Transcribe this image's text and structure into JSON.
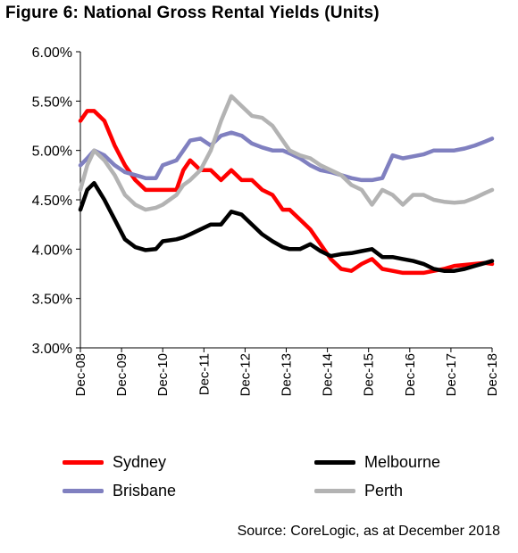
{
  "title": "Figure 6: National Gross Rental Yields (Units)",
  "source": "Source:  CoreLogic, as at December 2018",
  "chart_data": {
    "type": "line",
    "title": "Figure 6: National Gross Rental Yields (Units)",
    "y_ticks": [
      "6.00%",
      "5.50%",
      "5.00%",
      "4.50%",
      "4.00%",
      "3.50%",
      "3.00%"
    ],
    "ylim": [
      3.0,
      6.0
    ],
    "x_ticks": [
      "Dec-08",
      "Dec-09",
      "Dec-10",
      "Dec-11",
      "Dec-12",
      "Dec-13",
      "Dec-14",
      "Dec-15",
      "Dec-16",
      "Dec-17",
      "Dec-18"
    ],
    "xlim": [
      2008.917,
      2018.917
    ],
    "grid": false,
    "legend_position": "bottom",
    "series": [
      {
        "name": "Sydney",
        "color": "#ff0000",
        "x": [
          2008.917,
          2009.083,
          2009.25,
          2009.5,
          2009.75,
          2010.0,
          2010.25,
          2010.5,
          2010.75,
          2010.917,
          2011.25,
          2011.417,
          2011.583,
          2011.833,
          2012.083,
          2012.333,
          2012.583,
          2012.833,
          2013.083,
          2013.333,
          2013.583,
          2013.833,
          2014.0,
          2014.25,
          2014.5,
          2014.75,
          2015.0,
          2015.25,
          2015.5,
          2015.75,
          2016.0,
          2016.25,
          2016.5,
          2016.75,
          2017.0,
          2017.25,
          2017.5,
          2017.75,
          2018.0,
          2018.25,
          2018.5,
          2018.75,
          2018.917
        ],
        "values": [
          5.3,
          5.4,
          5.4,
          5.3,
          5.05,
          4.85,
          4.7,
          4.6,
          4.6,
          4.6,
          4.6,
          4.8,
          4.9,
          4.8,
          4.8,
          4.7,
          4.8,
          4.7,
          4.7,
          4.6,
          4.55,
          4.4,
          4.4,
          4.3,
          4.2,
          4.05,
          3.9,
          3.8,
          3.78,
          3.85,
          3.9,
          3.8,
          3.78,
          3.76,
          3.76,
          3.76,
          3.78,
          3.8,
          3.83,
          3.84,
          3.85,
          3.86,
          3.85
        ]
      },
      {
        "name": "Melbourne",
        "color": "#000000",
        "x": [
          2008.917,
          2009.083,
          2009.25,
          2009.5,
          2009.75,
          2010.0,
          2010.25,
          2010.5,
          2010.75,
          2010.917,
          2011.25,
          2011.417,
          2011.583,
          2011.833,
          2012.083,
          2012.333,
          2012.583,
          2012.833,
          2013.083,
          2013.333,
          2013.583,
          2013.833,
          2014.0,
          2014.25,
          2014.5,
          2014.75,
          2015.0,
          2015.25,
          2015.5,
          2015.75,
          2016.0,
          2016.25,
          2016.5,
          2016.75,
          2017.0,
          2017.25,
          2017.5,
          2017.75,
          2018.0,
          2018.25,
          2018.5,
          2018.75,
          2018.917
        ],
        "values": [
          4.4,
          4.6,
          4.67,
          4.5,
          4.3,
          4.1,
          4.02,
          3.99,
          4.0,
          4.08,
          4.1,
          4.12,
          4.15,
          4.2,
          4.25,
          4.25,
          4.38,
          4.35,
          4.25,
          4.15,
          4.08,
          4.02,
          4.0,
          4.0,
          4.05,
          3.98,
          3.93,
          3.95,
          3.96,
          3.98,
          4.0,
          3.92,
          3.92,
          3.9,
          3.88,
          3.85,
          3.8,
          3.78,
          3.78,
          3.8,
          3.83,
          3.86,
          3.88
        ]
      },
      {
        "name": "Brisbane",
        "color": "#8080c0",
        "x": [
          2008.917,
          2009.083,
          2009.25,
          2009.5,
          2009.75,
          2010.0,
          2010.25,
          2010.5,
          2010.75,
          2010.917,
          2011.25,
          2011.417,
          2011.583,
          2011.833,
          2012.083,
          2012.333,
          2012.583,
          2012.833,
          2013.083,
          2013.333,
          2013.583,
          2013.833,
          2014.0,
          2014.25,
          2014.5,
          2014.75,
          2015.0,
          2015.25,
          2015.5,
          2015.75,
          2016.0,
          2016.25,
          2016.5,
          2016.75,
          2017.0,
          2017.25,
          2017.5,
          2017.75,
          2018.0,
          2018.25,
          2018.5,
          2018.75,
          2018.917
        ],
        "values": [
          4.85,
          4.92,
          5.0,
          4.95,
          4.85,
          4.78,
          4.75,
          4.72,
          4.72,
          4.85,
          4.9,
          5.0,
          5.1,
          5.12,
          5.05,
          5.15,
          5.18,
          5.15,
          5.07,
          5.03,
          5.0,
          5.0,
          4.97,
          4.92,
          4.85,
          4.8,
          4.78,
          4.75,
          4.72,
          4.7,
          4.7,
          4.72,
          4.95,
          4.92,
          4.94,
          4.96,
          5.0,
          5.0,
          5.0,
          5.02,
          5.05,
          5.09,
          5.12
        ]
      },
      {
        "name": "Perth",
        "color": "#b3b3b3",
        "x": [
          2008.917,
          2009.083,
          2009.25,
          2009.5,
          2009.75,
          2010.0,
          2010.25,
          2010.5,
          2010.75,
          2010.917,
          2011.25,
          2011.417,
          2011.583,
          2011.833,
          2012.083,
          2012.333,
          2012.583,
          2012.833,
          2013.083,
          2013.333,
          2013.583,
          2013.833,
          2014.0,
          2014.25,
          2014.5,
          2014.75,
          2015.0,
          2015.25,
          2015.5,
          2015.75,
          2016.0,
          2016.25,
          2016.5,
          2016.75,
          2017.0,
          2017.25,
          2017.5,
          2017.75,
          2018.0,
          2018.25,
          2018.5,
          2018.75,
          2018.917
        ],
        "values": [
          4.6,
          4.85,
          5.0,
          4.9,
          4.75,
          4.55,
          4.45,
          4.4,
          4.42,
          4.45,
          4.55,
          4.65,
          4.7,
          4.8,
          5.0,
          5.3,
          5.55,
          5.45,
          5.35,
          5.33,
          5.25,
          5.1,
          5.0,
          4.95,
          4.92,
          4.85,
          4.8,
          4.75,
          4.65,
          4.6,
          4.45,
          4.6,
          4.55,
          4.45,
          4.55,
          4.55,
          4.5,
          4.48,
          4.47,
          4.48,
          4.52,
          4.57,
          4.6
        ]
      }
    ]
  }
}
